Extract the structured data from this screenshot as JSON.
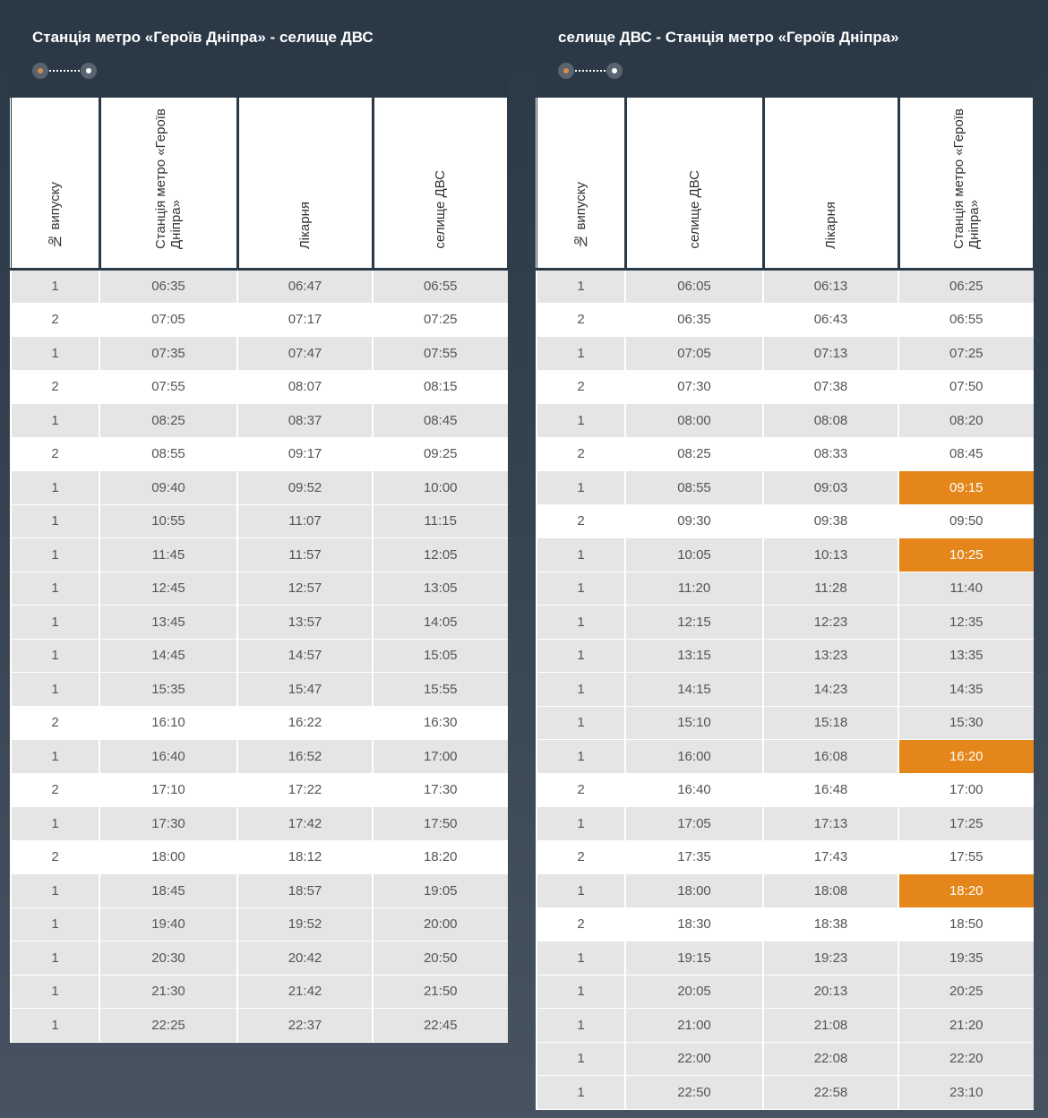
{
  "colors": {
    "accent": "#e5861a",
    "header": "#2b3947"
  },
  "tables": [
    {
      "title": "Станція метро «Героїв Дніпра» - селище ДВС",
      "route_icon": "route-start-end-icon",
      "columns": [
        "№ випуску",
        "Станція метро «Героїв Дніпра»",
        "Лікарня",
        "селище ДВС"
      ],
      "rows": [
        [
          "1",
          "06:35",
          "06:47",
          "06:55"
        ],
        [
          "2",
          "07:05",
          "07:17",
          "07:25"
        ],
        [
          "1",
          "07:35",
          "07:47",
          "07:55"
        ],
        [
          "2",
          "07:55",
          "08:07",
          "08:15"
        ],
        [
          "1",
          "08:25",
          "08:37",
          "08:45"
        ],
        [
          "2",
          "08:55",
          "09:17",
          "09:25"
        ],
        [
          "1",
          "09:40",
          "09:52",
          "10:00"
        ],
        [
          "1",
          "10:55",
          "11:07",
          "11:15"
        ],
        [
          "1",
          "11:45",
          "11:57",
          "12:05"
        ],
        [
          "1",
          "12:45",
          "12:57",
          "13:05"
        ],
        [
          "1",
          "13:45",
          "13:57",
          "14:05"
        ],
        [
          "1",
          "14:45",
          "14:57",
          "15:05"
        ],
        [
          "1",
          "15:35",
          "15:47",
          "15:55"
        ],
        [
          "2",
          "16:10",
          "16:22",
          "16:30"
        ],
        [
          "1",
          "16:40",
          "16:52",
          "17:00"
        ],
        [
          "2",
          "17:10",
          "17:22",
          "17:30"
        ],
        [
          "1",
          "17:30",
          "17:42",
          "17:50"
        ],
        [
          "2",
          "18:00",
          "18:12",
          "18:20"
        ],
        [
          "1",
          "18:45",
          "18:57",
          "19:05"
        ],
        [
          "1",
          "19:40",
          "19:52",
          "20:00"
        ],
        [
          "1",
          "20:30",
          "20:42",
          "20:50"
        ],
        [
          "1",
          "21:30",
          "21:42",
          "21:50"
        ],
        [
          "1",
          "22:25",
          "22:37",
          "22:45"
        ]
      ],
      "highlighted": []
    },
    {
      "title": "селище ДВС - Станція метро «Героїв Дніпра»",
      "route_icon": "route-start-end-icon",
      "columns": [
        "№ випуску",
        "селище ДВС",
        "Лікарня",
        "Станція метро «Героїв Дніпра»"
      ],
      "rows": [
        [
          "1",
          "06:05",
          "06:13",
          "06:25"
        ],
        [
          "2",
          "06:35",
          "06:43",
          "06:55"
        ],
        [
          "1",
          "07:05",
          "07:13",
          "07:25"
        ],
        [
          "2",
          "07:30",
          "07:38",
          "07:50"
        ],
        [
          "1",
          "08:00",
          "08:08",
          "08:20"
        ],
        [
          "2",
          "08:25",
          "08:33",
          "08:45"
        ],
        [
          "1",
          "08:55",
          "09:03",
          "09:15"
        ],
        [
          "2",
          "09:30",
          "09:38",
          "09:50"
        ],
        [
          "1",
          "10:05",
          "10:13",
          "10:25"
        ],
        [
          "1",
          "11:20",
          "11:28",
          "11:40"
        ],
        [
          "1",
          "12:15",
          "12:23",
          "12:35"
        ],
        [
          "1",
          "13:15",
          "13:23",
          "13:35"
        ],
        [
          "1",
          "14:15",
          "14:23",
          "14:35"
        ],
        [
          "1",
          "15:10",
          "15:18",
          "15:30"
        ],
        [
          "1",
          "16:00",
          "16:08",
          "16:20"
        ],
        [
          "2",
          "16:40",
          "16:48",
          "17:00"
        ],
        [
          "1",
          "17:05",
          "17:13",
          "17:25"
        ],
        [
          "2",
          "17:35",
          "17:43",
          "17:55"
        ],
        [
          "1",
          "18:00",
          "18:08",
          "18:20"
        ],
        [
          "2",
          "18:30",
          "18:38",
          "18:50"
        ],
        [
          "1",
          "19:15",
          "19:23",
          "19:35"
        ],
        [
          "1",
          "20:05",
          "20:13",
          "20:25"
        ],
        [
          "1",
          "21:00",
          "21:08",
          "21:20"
        ],
        [
          "1",
          "22:00",
          "22:08",
          "22:20"
        ],
        [
          "1",
          "22:50",
          "22:58",
          "23:10"
        ]
      ],
      "highlighted": [
        [
          6,
          3
        ],
        [
          8,
          3
        ],
        [
          14,
          3
        ],
        [
          18,
          3
        ]
      ]
    }
  ]
}
